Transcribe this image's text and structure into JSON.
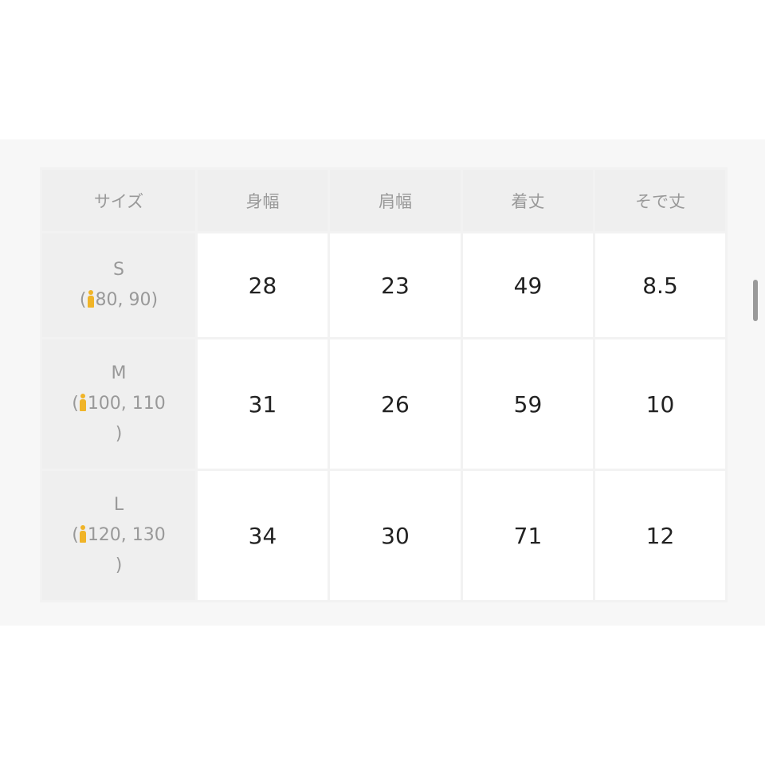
{
  "table": {
    "headers": [
      "サイズ",
      "身幅",
      "肩幅",
      "着丈",
      "そで丈"
    ],
    "rows": [
      {
        "size": "S",
        "range_open": "(",
        "range": "80, 90",
        "range_close": ")",
        "values": [
          "28",
          "23",
          "49",
          "8.5"
        ]
      },
      {
        "size": "M",
        "range_open": "(",
        "range": "100, 110",
        "range_close": ")",
        "values": [
          "31",
          "26",
          "59",
          "10"
        ]
      },
      {
        "size": "L",
        "range_open": "(",
        "range": "120, 130",
        "range_close": ")",
        "values": [
          "34",
          "30",
          "71",
          "12"
        ]
      }
    ]
  },
  "icons": {
    "child": "child-figure-icon"
  },
  "colors": {
    "header_bg": "#efefef",
    "icon": "#f0b428",
    "panel_bg": "#f7f7f7"
  }
}
